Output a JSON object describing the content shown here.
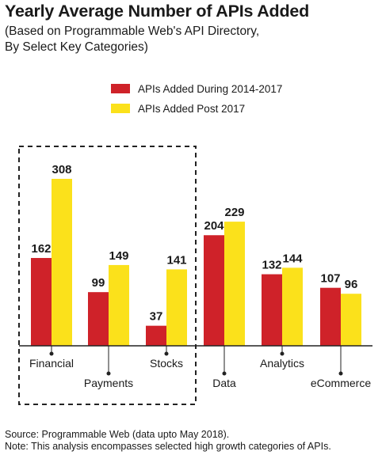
{
  "title": "Yearly Average Number of APIs Added",
  "subtitle_line1": "(Based on Programmable Web's API Directory,",
  "subtitle_line2": "By Select Key Categories)",
  "colors": {
    "series1": "#cf2229",
    "series2": "#fbe11b",
    "axis": "#222222",
    "text": "#1a1a1a"
  },
  "chart_data": {
    "type": "bar",
    "title": "Yearly Average Number of APIs Added",
    "categories": [
      "Financial",
      "Payments",
      "Stocks",
      "Data",
      "Analytics",
      "eCommerce"
    ],
    "series": [
      {
        "name": "APIs Added During 2014-2017",
        "color": "#cf2229",
        "values": [
          162,
          99,
          37,
          204,
          132,
          107
        ]
      },
      {
        "name": "APIs Added Post 2017",
        "color": "#fbe11b",
        "values": [
          308,
          149,
          141,
          229,
          144,
          96
        ]
      }
    ],
    "xlabel": "",
    "ylabel": "",
    "ylim": [
      0,
      308
    ],
    "grid": false,
    "legend": "top",
    "annotations": [
      "Financial, Payments and Stocks enclosed in a dashed box"
    ]
  },
  "footer": {
    "source": "Source: Programmable Web (data upto May 2018).",
    "note": "Note: This analysis encompasses selected high growth categories of APIs."
  }
}
